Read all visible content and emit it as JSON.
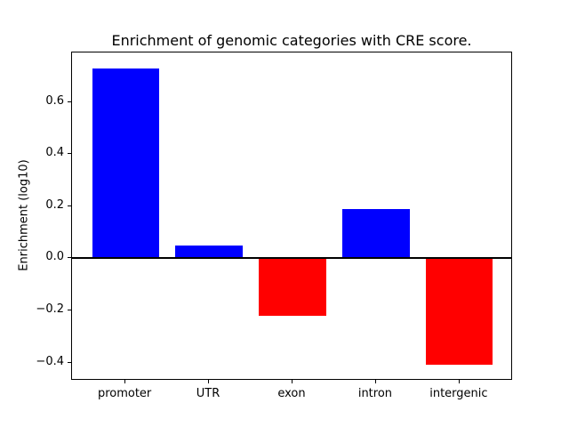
{
  "chart_data": {
    "type": "bar",
    "title": "Enrichment of genomic categories with CRE score.",
    "xlabel": "",
    "ylabel": "Enrichment (log10)",
    "categories": [
      "promoter",
      "UTR",
      "exon",
      "intron",
      "intergenic"
    ],
    "values": [
      0.73,
      0.05,
      -0.22,
      0.19,
      -0.41
    ],
    "positive_color": "#0000ff",
    "negative_color": "#ff0000",
    "bar_width_fraction": 0.8,
    "xlim": [
      -0.64,
      4.64
    ],
    "ylim": [
      -0.47,
      0.79
    ],
    "yticks": [
      -0.4,
      -0.2,
      0.0,
      0.2,
      0.4,
      0.6
    ],
    "ytick_labels": [
      "−0.4",
      "−0.2",
      "0.0",
      "0.2",
      "0.4",
      "0.6"
    ],
    "grid": false,
    "legend": "none",
    "zero_line": true
  }
}
